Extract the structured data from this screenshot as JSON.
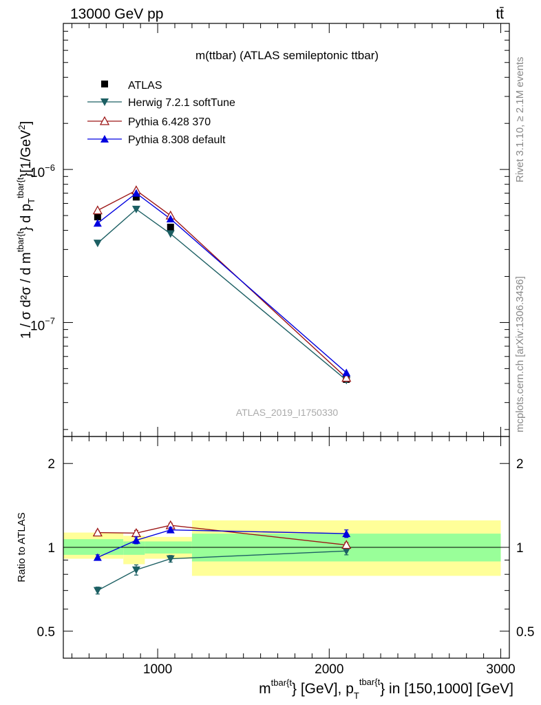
{
  "header": {
    "left": "13000 GeV pp",
    "right": "tt̄"
  },
  "plot_title": "m(ttbar) (ATLAS semileptonic ttbar)",
  "watermark": "ATLAS_2019_I1750330",
  "side_labels": {
    "rivet": "Rivet 3.1.10, ≥ 2.1M events",
    "mcplots": "mcplots.cern.ch [arXiv:1306.3436]"
  },
  "colors": {
    "atlas": "#000000",
    "herwig": "#1c5f63",
    "pythia6": "#9c1616",
    "pythia8": "#0000e0",
    "band_inner": "#99ff99",
    "band_outer": "#ffff99"
  },
  "chart_data": [
    {
      "type": "scatter",
      "panel": "main",
      "ylabel_main": "1 / σ d²σ / d m",
      "ylabel_sup1": "tbar{t",
      "ylabel_mid": "} d p",
      "ylabel_sub": "T",
      "ylabel_sup2": "tbar{t",
      "ylabel_end": "}[1/GeV",
      "ylabel_exp": "2",
      "ylabel_close": "]",
      "y_scale": "log",
      "ylim": [
        1.8e-08,
        9e-06
      ],
      "xlim": [
        450,
        3050
      ],
      "y_ticks": [
        {
          "mantissa": "10",
          "exponent": "−6",
          "value": 1e-06
        },
        {
          "mantissa": "10",
          "exponent": "−7",
          "value": 1e-07
        }
      ],
      "legend_position": "top-left",
      "x": [
        650,
        875,
        1075,
        2100
      ],
      "series": [
        {
          "name": "ATLAS",
          "marker": "square",
          "values": [
            4.9e-07,
            6.6e-07,
            4.2e-07,
            4.25e-08
          ]
        },
        {
          "name": "Herwig 7.2.1 softTune",
          "marker": "triangle-down",
          "values": [
            3.3e-07,
            5.5e-07,
            3.8e-07,
            4.2e-08
          ]
        },
        {
          "name": "Pythia 6.428 370",
          "marker": "triangle-open",
          "values": [
            5.4e-07,
            7.3e-07,
            5e-07,
            4.35e-08
          ]
        },
        {
          "name": "Pythia 8.308 default",
          "marker": "triangle-up",
          "values": [
            4.45e-07,
            7e-07,
            4.75e-07,
            4.7e-08
          ]
        }
      ]
    },
    {
      "type": "scatter",
      "panel": "ratio",
      "ylabel": "Ratio to ATLAS",
      "xlabel": {
        "a": "m",
        "a_sup": "tbar{t",
        "b": "} [GeV], p",
        "b_sub": "T",
        "b_sup": "tbar{t",
        "c": "} in [150,1000] [GeV]"
      },
      "y_scale": "log",
      "ylim": [
        0.4,
        2.5
      ],
      "xlim": [
        450,
        3050
      ],
      "x_ticks": [
        {
          "label": "1000",
          "value": 1000
        },
        {
          "label": "2000",
          "value": 2000
        },
        {
          "label": "3000",
          "value": 3000
        }
      ],
      "y_ticks": [
        {
          "label": "0.5",
          "value": 0.5
        },
        {
          "label": "1",
          "value": 1
        },
        {
          "label": "2",
          "value": 2
        }
      ],
      "bins": [
        {
          "lo": 450,
          "hi": 800,
          "inner": [
            0.94,
            1.07
          ],
          "outer": [
            0.91,
            1.13
          ]
        },
        {
          "lo": 800,
          "hi": 925,
          "inner": [
            0.94,
            1.05
          ],
          "outer": [
            0.87,
            1.1
          ]
        },
        {
          "lo": 925,
          "hi": 1200,
          "inner": [
            0.95,
            1.05
          ],
          "outer": [
            0.91,
            1.09
          ]
        },
        {
          "lo": 1200,
          "hi": 3000,
          "inner": [
            0.89,
            1.12
          ],
          "outer": [
            0.79,
            1.25
          ]
        }
      ],
      "x": [
        650,
        875,
        1075,
        2100
      ],
      "series": [
        {
          "name": "Herwig 7.2.1 softTune",
          "values": [
            0.7,
            0.83,
            0.91,
            0.97
          ],
          "err": [
            0.02,
            0.035,
            0.025,
            0.03
          ]
        },
        {
          "name": "Pythia 6.428 370",
          "values": [
            1.13,
            1.125,
            1.2,
            1.02
          ],
          "err": [
            0.015,
            0.025,
            0.02,
            0.02
          ]
        },
        {
          "name": "Pythia 8.308 default",
          "values": [
            0.92,
            1.06,
            1.155,
            1.12
          ],
          "err": [
            0.02,
            0.03,
            0.025,
            0.035
          ]
        }
      ]
    }
  ]
}
